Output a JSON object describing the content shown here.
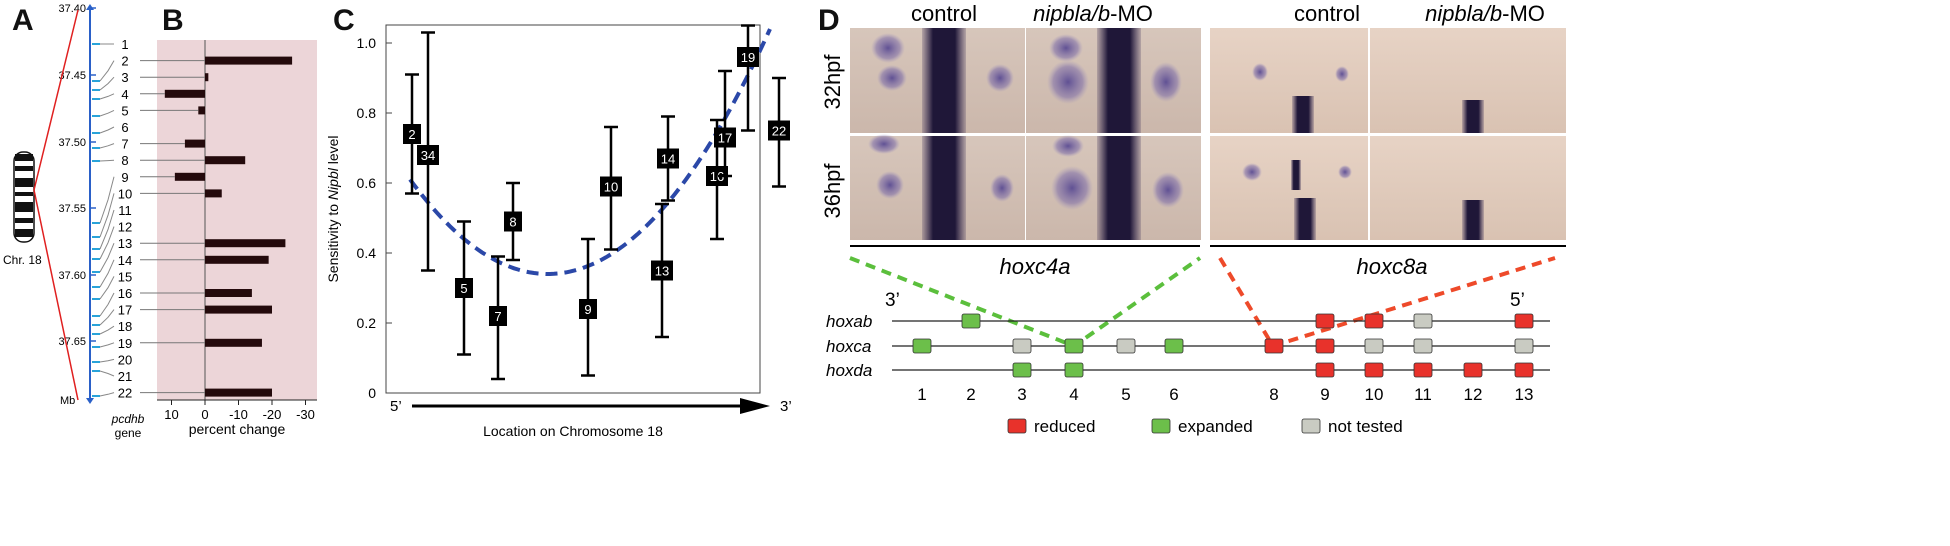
{
  "panels": {
    "A": "A",
    "B": "B",
    "C": "C",
    "D": "D"
  },
  "panel_a": {
    "mb_ticks": [
      "37.40",
      "37.45",
      "37.50",
      "37.55",
      "37.60",
      "37.65"
    ],
    "mb_label": "Mb",
    "chromosome_label": "Chr. 18",
    "genes": [
      "1",
      "2",
      "3",
      "4",
      "5",
      "6",
      "7",
      "8",
      "9",
      "10",
      "11",
      "12",
      "13",
      "14",
      "15",
      "16",
      "17",
      "18",
      "19",
      "20",
      "21",
      "22"
    ],
    "gene_axis_label_1": "pcdhb",
    "gene_axis_label_2": "gene"
  },
  "panel_b": {
    "xlabel": "percent change",
    "xticks": [
      "10",
      "0",
      "-10",
      "-20",
      "-30"
    ]
  },
  "panel_c": {
    "ylabel_pre": "Sensitivity to ",
    "ylabel_ital": "Nipbl",
    "ylabel_post": " level",
    "yticks": [
      "0",
      "0.2",
      "0.4",
      "0.6",
      "0.8",
      "1.0"
    ],
    "xlabel": "Location on Chromosome 18",
    "start_label": "5’",
    "end_label": "3’"
  },
  "panel_d": {
    "col_headers": [
      {
        "text": "control",
        "italic": false
      },
      {
        "prefix": "nipbla/b",
        "suffix": "-MO",
        "italic": true
      },
      {
        "text": "control",
        "italic": false
      },
      {
        "prefix": "nipbla/b",
        "suffix": "-MO",
        "italic": true
      }
    ],
    "row_labels": [
      "32hpf",
      "36hpf"
    ],
    "gene_labels": [
      "hoxc4a",
      "hoxc8a"
    ],
    "three_prime": "3’",
    "five_prime": "5’",
    "clusters": [
      "hoxab",
      "hoxca",
      "hoxda"
    ],
    "paralog_numbers": [
      "1",
      "2",
      "3",
      "4",
      "5",
      "6",
      "8",
      "9",
      "10",
      "11",
      "12",
      "13"
    ],
    "legend": [
      {
        "label": "reduced",
        "color": "#e8322b"
      },
      {
        "label": "expanded",
        "color": "#6cbf4a"
      },
      {
        "label": "not tested",
        "color": "#c9cbc2"
      }
    ],
    "cells": {
      "hoxab": {
        "2": "expanded",
        "9": "reduced",
        "10": "reduced",
        "11": "not tested",
        "13": "reduced"
      },
      "hoxca": {
        "1": "expanded",
        "3": "not tested",
        "4": "expanded",
        "5": "not tested",
        "6": "expanded",
        "8": "reduced",
        "9": "reduced",
        "10": "not tested",
        "11": "not tested",
        "13": "not tested"
      },
      "hoxda": {
        "3": "expanded",
        "4": "expanded",
        "9": "reduced",
        "10": "reduced",
        "11": "reduced",
        "12": "reduced",
        "13": "reduced"
      }
    }
  },
  "chart_data": [
    {
      "type": "bar",
      "orientation": "horizontal",
      "title": "",
      "xlabel": "percent change",
      "ylabel": "pcdhb gene",
      "xlim": [
        13,
        -33
      ],
      "categories": [
        "1",
        "2",
        "3",
        "4",
        "5",
        "6",
        "7",
        "8",
        "9",
        "10",
        "11",
        "12",
        "13",
        "14",
        "15",
        "16",
        "17",
        "18",
        "19",
        "20",
        "21",
        "22"
      ],
      "values": [
        0,
        -26,
        -1,
        12,
        2,
        0,
        6,
        -12,
        9,
        -5,
        0,
        0,
        -24,
        -19,
        0,
        -14,
        -20,
        0,
        -17,
        0,
        0,
        -20
      ]
    },
    {
      "type": "scatter",
      "title": "",
      "xlabel": "Location on Chromosome 18",
      "ylabel": "Sensitivity to Nipbl level",
      "ylim": [
        0,
        1.05
      ],
      "points": [
        {
          "label": "2",
          "y": 0.74,
          "lo": 0.57,
          "hi": 0.91
        },
        {
          "label": "34",
          "y": 0.68,
          "lo": 0.35,
          "hi": 1.03
        },
        {
          "label": "5",
          "y": 0.3,
          "lo": 0.11,
          "hi": 0.49
        },
        {
          "label": "7",
          "y": 0.22,
          "lo": 0.04,
          "hi": 0.39
        },
        {
          "label": "8",
          "y": 0.49,
          "lo": 0.38,
          "hi": 0.6
        },
        {
          "label": "9",
          "y": 0.24,
          "lo": 0.05,
          "hi": 0.44
        },
        {
          "label": "10",
          "y": 0.59,
          "lo": 0.41,
          "hi": 0.76
        },
        {
          "label": "13",
          "y": 0.35,
          "lo": 0.16,
          "hi": 0.54
        },
        {
          "label": "14",
          "y": 0.67,
          "lo": 0.55,
          "hi": 0.79
        },
        {
          "label": "16",
          "y": 0.62,
          "lo": 0.44,
          "hi": 0.78
        },
        {
          "label": "17",
          "y": 0.73,
          "lo": 0.62,
          "hi": 0.92
        },
        {
          "label": "19",
          "y": 0.96,
          "lo": 0.75,
          "hi": 1.05
        },
        {
          "label": "22",
          "y": 0.75,
          "lo": 0.59,
          "hi": 0.9
        }
      ],
      "fit": "quadratic"
    }
  ]
}
